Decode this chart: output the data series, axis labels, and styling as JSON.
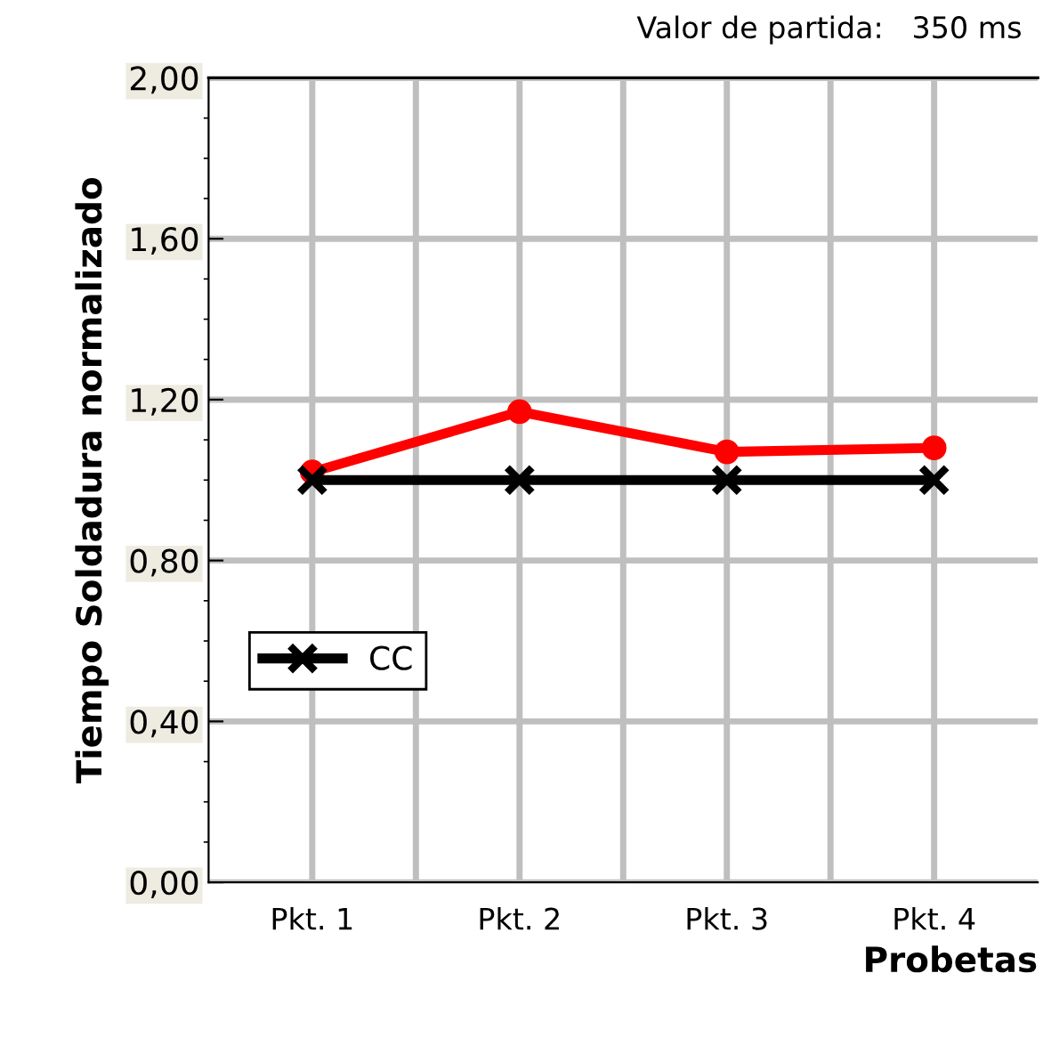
{
  "chart_data": {
    "type": "line",
    "ylabel": "Tiempo Soldadura normalizado",
    "xlabel": "Probetas",
    "annotations": [
      "Valor de partida:   350 ms"
    ],
    "categories": [
      "Pkt. 1",
      "Pkt. 2",
      "Pkt. 3",
      "Pkt. 4"
    ],
    "series": [
      {
        "name": "CC",
        "color": "#000000",
        "marker": "cross",
        "values": [
          1.0,
          1.0,
          1.0,
          1.0
        ]
      },
      {
        "color": "#ff0000",
        "marker": "circle",
        "values": [
          1.02,
          1.17,
          1.07,
          1.08
        ]
      }
    ],
    "ylim": [
      0,
      2
    ],
    "yticks": [
      {
        "value": 0,
        "label": "0,00"
      },
      {
        "value": 0.4,
        "label": "0,40"
      },
      {
        "value": 0.8,
        "label": "0,80"
      },
      {
        "value": 1.2,
        "label": "1,20"
      },
      {
        "value": 1.6,
        "label": "1,60"
      },
      {
        "value": 2,
        "label": "2,00"
      }
    ],
    "grid": true,
    "legend": "lower left",
    "line_style": "solid"
  }
}
